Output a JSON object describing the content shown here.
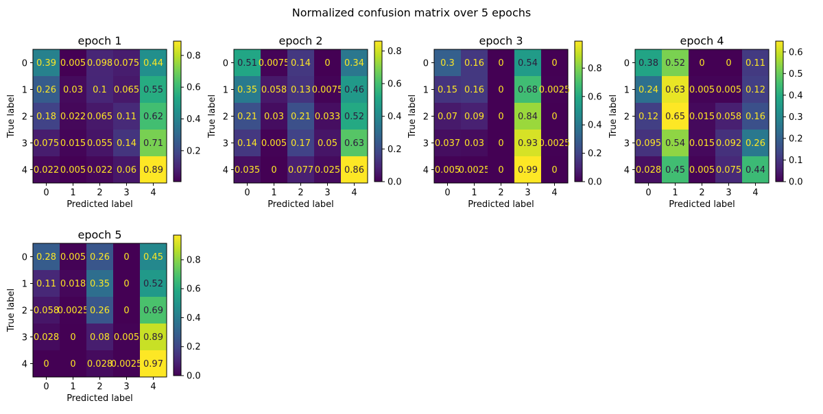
{
  "figure": {
    "title": "Normalized confusion matrix over 5 epochs"
  },
  "chart_data": [
    {
      "type": "heatmap",
      "title": "epoch 1",
      "xlabel": "Predicted label",
      "ylabel": "True label",
      "x_tick_labels": [
        "0",
        "1",
        "2",
        "3",
        "4"
      ],
      "y_tick_labels": [
        "0",
        "1",
        "2",
        "3",
        "4"
      ],
      "values": [
        [
          0.39,
          0.005,
          0.098,
          0.075,
          0.44
        ],
        [
          0.26,
          0.03,
          0.1,
          0.065,
          0.55
        ],
        [
          0.18,
          0.022,
          0.065,
          0.11,
          0.62
        ],
        [
          0.075,
          0.015,
          0.055,
          0.14,
          0.71
        ],
        [
          0.022,
          0.005,
          0.022,
          0.06,
          0.89
        ]
      ],
      "cell_labels": [
        [
          "0.39",
          "0.005",
          "0.098",
          "0.075",
          "0.44"
        ],
        [
          "0.26",
          "0.03",
          "0.1",
          "0.065",
          "0.55"
        ],
        [
          "0.18",
          "0.022",
          "0.065",
          "0.11",
          "0.62"
        ],
        [
          "0.075",
          "0.015",
          "0.055",
          "0.14",
          "0.71"
        ],
        [
          "0.022",
          "0.005",
          "0.022",
          "0.06",
          "0.89"
        ]
      ],
      "colorbar": {
        "range": [
          0.005,
          0.89
        ],
        "ticks": [
          0.2,
          0.4,
          0.6,
          0.8
        ],
        "tick_labels": [
          "0.2",
          "0.4",
          "0.6",
          "0.8"
        ]
      }
    },
    {
      "type": "heatmap",
      "title": "epoch 2",
      "xlabel": "Predicted label",
      "ylabel": "True label",
      "x_tick_labels": [
        "0",
        "1",
        "2",
        "3",
        "4"
      ],
      "y_tick_labels": [
        "0",
        "1",
        "2",
        "3",
        "4"
      ],
      "values": [
        [
          0.51,
          0.0075,
          0.14,
          0,
          0.34
        ],
        [
          0.35,
          0.058,
          0.13,
          0.0075,
          0.46
        ],
        [
          0.21,
          0.03,
          0.21,
          0.033,
          0.52
        ],
        [
          0.14,
          0.005,
          0.17,
          0.05,
          0.63
        ],
        [
          0.035,
          0,
          0.077,
          0.025,
          0.86
        ]
      ],
      "cell_labels": [
        [
          "0.51",
          "0.0075",
          "0.14",
          "0",
          "0.34"
        ],
        [
          "0.35",
          "0.058",
          "0.13",
          "0.0075",
          "0.46"
        ],
        [
          "0.21",
          "0.03",
          "0.21",
          "0.033",
          "0.52"
        ],
        [
          "0.14",
          "0.005",
          "0.17",
          "0.05",
          "0.63"
        ],
        [
          "0.035",
          "0",
          "0.077",
          "0.025",
          "0.86"
        ]
      ],
      "colorbar": {
        "range": [
          0,
          0.86
        ],
        "ticks": [
          0,
          0.2,
          0.4,
          0.6,
          0.8
        ],
        "tick_labels": [
          "0.0",
          "0.2",
          "0.4",
          "0.6",
          "0.8"
        ]
      }
    },
    {
      "type": "heatmap",
      "title": "epoch 3",
      "xlabel": "Predicted label",
      "ylabel": "True label",
      "x_tick_labels": [
        "0",
        "1",
        "2",
        "3",
        "4"
      ],
      "y_tick_labels": [
        "0",
        "1",
        "2",
        "3",
        "4"
      ],
      "values": [
        [
          0.3,
          0.16,
          0,
          0.54,
          0
        ],
        [
          0.15,
          0.16,
          0,
          0.68,
          0.0025
        ],
        [
          0.07,
          0.09,
          0,
          0.84,
          0
        ],
        [
          0.037,
          0.03,
          0,
          0.93,
          0.0025
        ],
        [
          0.005,
          0.0025,
          0,
          0.99,
          0
        ]
      ],
      "cell_labels": [
        [
          "0.3",
          "0.16",
          "0",
          "0.54",
          "0"
        ],
        [
          "0.15",
          "0.16",
          "0",
          "0.68",
          "0.0025"
        ],
        [
          "0.07",
          "0.09",
          "0",
          "0.84",
          "0"
        ],
        [
          "0.037",
          "0.03",
          "0",
          "0.93",
          "0.0025"
        ],
        [
          "0.005",
          "0.0025",
          "0",
          "0.99",
          "0"
        ]
      ],
      "colorbar": {
        "range": [
          0,
          0.99
        ],
        "ticks": [
          0,
          0.2,
          0.4,
          0.6,
          0.8
        ],
        "tick_labels": [
          "0.0",
          "0.2",
          "0.4",
          "0.6",
          "0.8"
        ]
      }
    },
    {
      "type": "heatmap",
      "title": "epoch 4",
      "xlabel": "Predicted label",
      "ylabel": "True label",
      "x_tick_labels": [
        "0",
        "1",
        "2",
        "3",
        "4"
      ],
      "y_tick_labels": [
        "0",
        "1",
        "2",
        "3",
        "4"
      ],
      "values": [
        [
          0.38,
          0.52,
          0,
          0,
          0.11
        ],
        [
          0.24,
          0.63,
          0.005,
          0.005,
          0.12
        ],
        [
          0.12,
          0.65,
          0.015,
          0.058,
          0.16
        ],
        [
          0.095,
          0.54,
          0.015,
          0.092,
          0.26
        ],
        [
          0.028,
          0.45,
          0.005,
          0.075,
          0.44
        ]
      ],
      "cell_labels": [
        [
          "0.38",
          "0.52",
          "0",
          "0",
          "0.11"
        ],
        [
          "0.24",
          "0.63",
          "0.005",
          "0.005",
          "0.12"
        ],
        [
          "0.12",
          "0.65",
          "0.015",
          "0.058",
          "0.16"
        ],
        [
          "0.095",
          "0.54",
          "0.015",
          "0.092",
          "0.26"
        ],
        [
          "0.028",
          "0.45",
          "0.005",
          "0.075",
          "0.44"
        ]
      ],
      "colorbar": {
        "range": [
          0,
          0.65
        ],
        "ticks": [
          0,
          0.1,
          0.2,
          0.3,
          0.4,
          0.5,
          0.6
        ],
        "tick_labels": [
          "0.0",
          "0.1",
          "0.2",
          "0.3",
          "0.4",
          "0.5",
          "0.6"
        ]
      }
    },
    {
      "type": "heatmap",
      "title": "epoch 5",
      "xlabel": "Predicted label",
      "ylabel": "True label",
      "x_tick_labels": [
        "0",
        "1",
        "2",
        "3",
        "4"
      ],
      "y_tick_labels": [
        "0",
        "1",
        "2",
        "3",
        "4"
      ],
      "values": [
        [
          0.28,
          0.005,
          0.26,
          0,
          0.45
        ],
        [
          0.11,
          0.018,
          0.35,
          0,
          0.52
        ],
        [
          0.058,
          0.0025,
          0.26,
          0,
          0.69
        ],
        [
          0.028,
          0,
          0.08,
          0.005,
          0.89
        ],
        [
          0,
          0,
          0.028,
          0.0025,
          0.97
        ]
      ],
      "cell_labels": [
        [
          "0.28",
          "0.005",
          "0.26",
          "0",
          "0.45"
        ],
        [
          "0.11",
          "0.018",
          "0.35",
          "0",
          "0.52"
        ],
        [
          "0.058",
          "0.0025",
          "0.26",
          "0",
          "0.69"
        ],
        [
          "0.028",
          "0",
          "0.08",
          "0.005",
          "0.89"
        ],
        [
          "0",
          "0",
          "0.028",
          "0.0025",
          "0.97"
        ]
      ],
      "colorbar": {
        "range": [
          0,
          0.97
        ],
        "ticks": [
          0,
          0.2,
          0.4,
          0.6,
          0.8
        ],
        "tick_labels": [
          "0.0",
          "0.2",
          "0.4",
          "0.6",
          "0.8"
        ]
      }
    }
  ]
}
